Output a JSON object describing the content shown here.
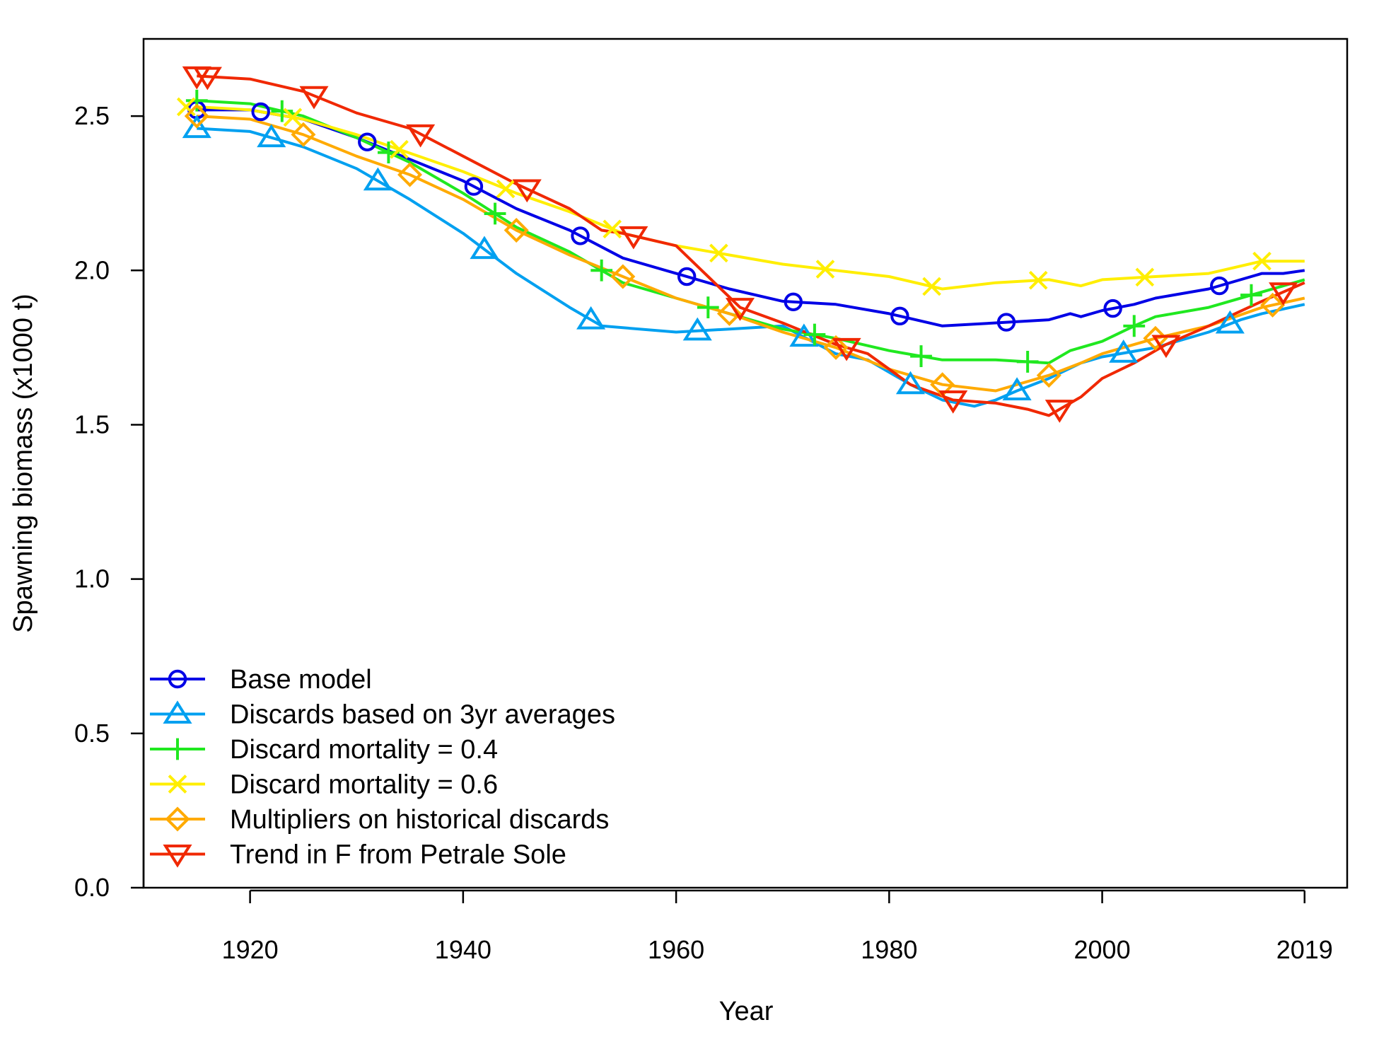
{
  "chart_data": {
    "type": "line",
    "title": "",
    "xlabel": "Year",
    "ylabel": "Spawning biomass (x1000 t)",
    "xlim": [
      1910,
      2023
    ],
    "ylim": [
      0,
      2.75
    ],
    "x_ticks": [
      1920,
      1940,
      1960,
      1980,
      2000,
      2019
    ],
    "y_ticks": [
      0.0,
      0.5,
      1.0,
      1.5,
      2.0,
      2.5
    ],
    "x_tick_labels": [
      "1920",
      "1940",
      "1960",
      "1980",
      "2000",
      "2019"
    ],
    "y_tick_labels": [
      "0.0",
      "0.5",
      "1.0",
      "1.5",
      "2.0",
      "2.5"
    ],
    "grid": false,
    "legend_position": "bottom-left",
    "series": [
      {
        "name": "Base model",
        "color": "#0000e6",
        "marker": "circle",
        "points": [
          [
            1915,
            2.52
          ],
          [
            1920,
            2.52
          ],
          [
            1925,
            2.49
          ],
          [
            1930,
            2.43
          ],
          [
            1935,
            2.36
          ],
          [
            1940,
            2.29
          ],
          [
            1945,
            2.2
          ],
          [
            1950,
            2.13
          ],
          [
            1955,
            2.04
          ],
          [
            1960,
            1.99
          ],
          [
            1965,
            1.94
          ],
          [
            1970,
            1.9
          ],
          [
            1975,
            1.89
          ],
          [
            1980,
            1.86
          ],
          [
            1985,
            1.82
          ],
          [
            1990,
            1.83
          ],
          [
            1995,
            1.84
          ],
          [
            1997,
            1.86
          ],
          [
            1998,
            1.85
          ],
          [
            2000,
            1.87
          ],
          [
            2003,
            1.89
          ],
          [
            2005,
            1.91
          ],
          [
            2010,
            1.94
          ],
          [
            2015,
            1.99
          ],
          [
            2017,
            1.99
          ],
          [
            2019,
            2.0
          ]
        ],
        "marker_x": [
          1915,
          1921,
          1931,
          1941,
          1951,
          1961,
          1971,
          1981,
          1991,
          2001,
          2011
        ]
      },
      {
        "name": "Discards based on 3yr averages",
        "color": "#00a0f0",
        "marker": "triangle-up",
        "points": [
          [
            1915,
            2.46
          ],
          [
            1920,
            2.45
          ],
          [
            1925,
            2.4
          ],
          [
            1930,
            2.33
          ],
          [
            1935,
            2.23
          ],
          [
            1940,
            2.12
          ],
          [
            1945,
            1.99
          ],
          [
            1950,
            1.88
          ],
          [
            1953,
            1.82
          ],
          [
            1960,
            1.8
          ],
          [
            1965,
            1.81
          ],
          [
            1970,
            1.82
          ],
          [
            1975,
            1.73
          ],
          [
            1978,
            1.71
          ],
          [
            1982,
            1.63
          ],
          [
            1985,
            1.58
          ],
          [
            1988,
            1.56
          ],
          [
            1990,
            1.58
          ],
          [
            1992,
            1.61
          ],
          [
            1995,
            1.65
          ],
          [
            1998,
            1.7
          ],
          [
            2000,
            1.72
          ],
          [
            2005,
            1.75
          ],
          [
            2010,
            1.8
          ],
          [
            2013,
            1.84
          ],
          [
            2015,
            1.86
          ],
          [
            2019,
            1.89
          ]
        ],
        "marker_x": [
          1915,
          1922,
          1932,
          1942,
          1952,
          1962,
          1972,
          1982,
          1992,
          2002,
          2012
        ]
      },
      {
        "name": "Discard mortality = 0.4",
        "color": "#20e820",
        "marker": "plus",
        "points": [
          [
            1915,
            2.55
          ],
          [
            1920,
            2.54
          ],
          [
            1925,
            2.5
          ],
          [
            1930,
            2.43
          ],
          [
            1935,
            2.35
          ],
          [
            1940,
            2.25
          ],
          [
            1945,
            2.14
          ],
          [
            1950,
            2.06
          ],
          [
            1955,
            1.96
          ],
          [
            1960,
            1.91
          ],
          [
            1965,
            1.86
          ],
          [
            1970,
            1.81
          ],
          [
            1975,
            1.78
          ],
          [
            1980,
            1.74
          ],
          [
            1985,
            1.71
          ],
          [
            1990,
            1.71
          ],
          [
            1995,
            1.7
          ],
          [
            1997,
            1.74
          ],
          [
            2000,
            1.77
          ],
          [
            2003,
            1.82
          ],
          [
            2005,
            1.85
          ],
          [
            2010,
            1.88
          ],
          [
            2015,
            1.93
          ],
          [
            2019,
            1.97
          ]
        ],
        "marker_x": [
          1915,
          1923,
          1933,
          1943,
          1953,
          1963,
          1973,
          1983,
          1993,
          2003,
          2014
        ]
      },
      {
        "name": "Discard mortality = 0.6",
        "color": "#ffee00",
        "marker": "cross",
        "points": [
          [
            1915,
            2.53
          ],
          [
            1920,
            2.52
          ],
          [
            1925,
            2.49
          ],
          [
            1930,
            2.44
          ],
          [
            1935,
            2.38
          ],
          [
            1940,
            2.32
          ],
          [
            1945,
            2.25
          ],
          [
            1950,
            2.19
          ],
          [
            1955,
            2.12
          ],
          [
            1960,
            2.08
          ],
          [
            1965,
            2.05
          ],
          [
            1970,
            2.02
          ],
          [
            1975,
            2.0
          ],
          [
            1980,
            1.98
          ],
          [
            1985,
            1.94
          ],
          [
            1990,
            1.96
          ],
          [
            1995,
            1.97
          ],
          [
            1998,
            1.95
          ],
          [
            2000,
            1.97
          ],
          [
            2005,
            1.98
          ],
          [
            2010,
            1.99
          ],
          [
            2015,
            2.03
          ],
          [
            2019,
            2.03
          ]
        ],
        "marker_x": [
          1914,
          1924,
          1934,
          1944,
          1954,
          1964,
          1974,
          1984,
          1994,
          2004,
          2015
        ]
      },
      {
        "name": "Multipliers on historical discards",
        "color": "#ffaa00",
        "marker": "diamond",
        "points": [
          [
            1915,
            2.5
          ],
          [
            1920,
            2.49
          ],
          [
            1925,
            2.44
          ],
          [
            1930,
            2.37
          ],
          [
            1935,
            2.31
          ],
          [
            1940,
            2.23
          ],
          [
            1945,
            2.13
          ],
          [
            1950,
            2.05
          ],
          [
            1955,
            1.98
          ],
          [
            1960,
            1.91
          ],
          [
            1965,
            1.86
          ],
          [
            1970,
            1.8
          ],
          [
            1975,
            1.75
          ],
          [
            1980,
            1.68
          ],
          [
            1985,
            1.63
          ],
          [
            1990,
            1.61
          ],
          [
            1995,
            1.66
          ],
          [
            1998,
            1.7
          ],
          [
            2000,
            1.73
          ],
          [
            2005,
            1.78
          ],
          [
            2010,
            1.82
          ],
          [
            2015,
            1.88
          ],
          [
            2019,
            1.91
          ]
        ],
        "marker_x": [
          1915,
          1925,
          1935,
          1945,
          1955,
          1965,
          1975,
          1985,
          1995,
          2005,
          2016
        ]
      },
      {
        "name": "Trend in F from Petrale Sole",
        "color": "#f02800",
        "marker": "triangle-down",
        "points": [
          [
            1915,
            2.63
          ],
          [
            1920,
            2.62
          ],
          [
            1925,
            2.58
          ],
          [
            1930,
            2.51
          ],
          [
            1935,
            2.46
          ],
          [
            1940,
            2.37
          ],
          [
            1945,
            2.28
          ],
          [
            1950,
            2.2
          ],
          [
            1953,
            2.13
          ],
          [
            1955,
            2.12
          ],
          [
            1960,
            2.08
          ],
          [
            1963,
            1.98
          ],
          [
            1966,
            1.88
          ],
          [
            1970,
            1.83
          ],
          [
            1975,
            1.76
          ],
          [
            1978,
            1.73
          ],
          [
            1982,
            1.63
          ],
          [
            1986,
            1.58
          ],
          [
            1990,
            1.57
          ],
          [
            1993,
            1.55
          ],
          [
            1995,
            1.53
          ],
          [
            1998,
            1.59
          ],
          [
            2000,
            1.65
          ],
          [
            2003,
            1.7
          ],
          [
            2006,
            1.76
          ],
          [
            2010,
            1.82
          ],
          [
            2015,
            1.9
          ],
          [
            2019,
            1.96
          ]
        ],
        "marker_x": [
          1915,
          1916,
          1926,
          1936,
          1946,
          1956,
          1966,
          1976,
          1986,
          1996,
          2006,
          2017
        ]
      }
    ]
  }
}
